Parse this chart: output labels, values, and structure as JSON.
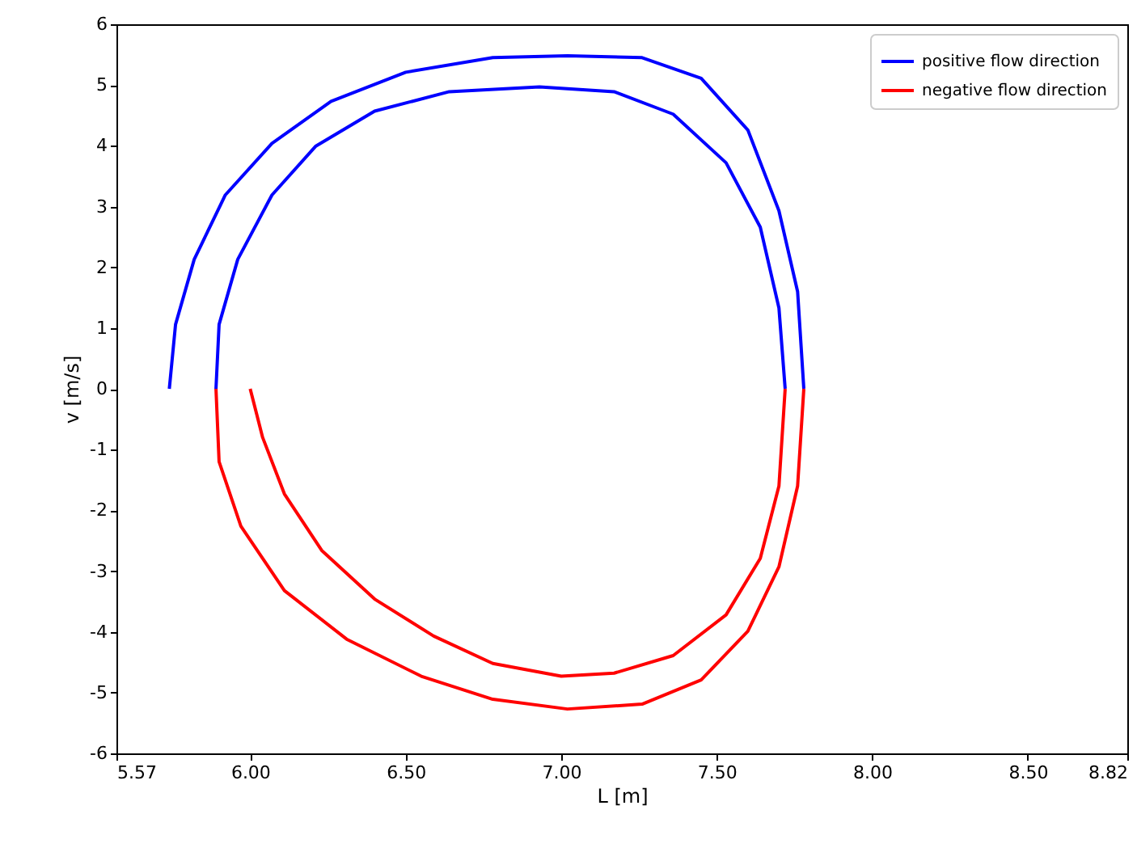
{
  "chart_data": {
    "type": "line",
    "xlabel": "L [m]",
    "ylabel": "v [m/s]",
    "xlim": [
      5.57,
      8.82
    ],
    "ylim": [
      -6,
      6
    ],
    "xticks": [
      5.57,
      {
        "value": 6,
        "label": "6.00"
      },
      {
        "value": 6.5,
        "label": "6.50"
      },
      {
        "value": 7,
        "label": "7.00"
      },
      {
        "value": 7.5,
        "label": "7.50"
      },
      {
        "value": 8,
        "label": "8.00"
      },
      {
        "value": 8.5,
        "label": "8.50"
      },
      8.82
    ],
    "yticks": [
      -6,
      -5,
      -4,
      -3,
      -2,
      -1,
      0,
      1,
      2,
      3,
      4,
      5,
      6
    ],
    "grid": false,
    "legend": "top right",
    "series": [
      {
        "name": "positive flow direction",
        "color": "#0000ff",
        "x": [
          5.74,
          5.76,
          5.82,
          5.92,
          6.07,
          6.26,
          6.5,
          6.78,
          7.02,
          7.26,
          7.45,
          7.6,
          7.7,
          7.76,
          7.78
        ],
        "values": [
          0,
          1.06,
          2.13,
          3.19,
          4.04,
          4.73,
          5.21,
          5.45,
          5.48,
          5.45,
          5.11,
          4.26,
          2.93,
          1.6,
          0
        ]
      },
      {
        "name": "negative flow direction",
        "color": "#ff0000",
        "x": [
          7.78,
          7.76,
          7.7,
          7.6,
          7.45,
          7.26,
          7.02,
          6.78,
          6.55,
          6.31,
          6.11,
          5.97,
          5.9,
          5.89
        ],
        "values": [
          0,
          -1.6,
          -2.93,
          -3.99,
          -4.79,
          -5.19,
          -5.27,
          -5.11,
          -4.73,
          -4.12,
          -3.32,
          -2.26,
          -1.2,
          0
        ]
      },
      {
        "color": "#0000ff",
        "x": [
          5.89,
          5.9,
          5.96,
          6.07,
          6.21,
          6.4,
          6.64,
          6.93,
          7.17,
          7.36,
          7.53,
          7.64,
          7.7,
          7.72
        ],
        "values": [
          0,
          1.06,
          2.13,
          3.19,
          3.99,
          4.57,
          4.89,
          4.97,
          4.89,
          4.52,
          3.72,
          2.66,
          1.33,
          0
        ]
      },
      {
        "color": "#ff0000",
        "x": [
          7.72,
          7.7,
          7.64,
          7.53,
          7.36,
          7.17,
          7.0,
          6.78,
          6.59,
          6.4,
          6.23,
          6.11,
          6.04,
          6.0
        ],
        "values": [
          0,
          -1.6,
          -2.79,
          -3.72,
          -4.39,
          -4.68,
          -4.73,
          -4.52,
          -4.07,
          -3.46,
          -2.66,
          -1.73,
          -0.8,
          0
        ]
      }
    ]
  }
}
